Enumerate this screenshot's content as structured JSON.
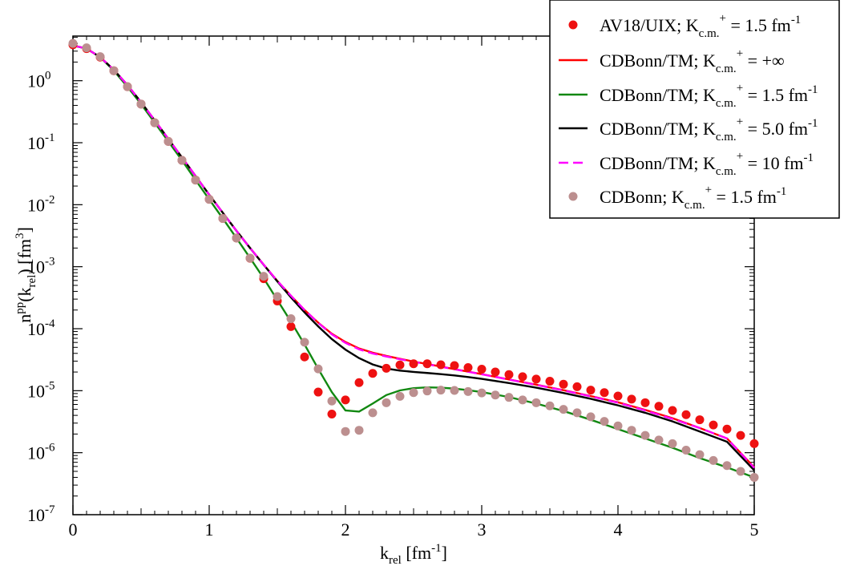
{
  "chart_data": {
    "type": "line",
    "title": "",
    "xlabel": {
      "main": "k",
      "sub": "rel",
      "unit_open": " [fm",
      "unit_sup": "-1",
      "unit_close": "]"
    },
    "ylabel": {
      "p1": "n",
      "sup": "pp",
      "p2": "(k",
      "sub": "rel",
      "p3": ") [fm",
      "sup2": "3",
      "p4": "]"
    },
    "x_range": [
      0,
      5
    ],
    "y_range_log10": [
      -7,
      0.72
    ],
    "x_ticks": [
      {
        "value": 0,
        "label": "0"
      },
      {
        "value": 1,
        "label": "1"
      },
      {
        "value": 2,
        "label": "2"
      },
      {
        "value": 3,
        "label": "3"
      },
      {
        "value": 4,
        "label": "4"
      },
      {
        "value": 5,
        "label": "5"
      }
    ],
    "y_ticks": [
      {
        "exp": 0,
        "base": "10",
        "sup": "0"
      },
      {
        "exp": -1,
        "base": "10",
        "sup": "-1"
      },
      {
        "exp": -2,
        "base": "10",
        "sup": "-2"
      },
      {
        "exp": -3,
        "base": "10",
        "sup": "-3"
      },
      {
        "exp": -4,
        "base": "10",
        "sup": "-4"
      },
      {
        "exp": -5,
        "base": "10",
        "sup": "-5"
      },
      {
        "exp": -6,
        "base": "10",
        "sup": "-6"
      },
      {
        "exp": -7,
        "base": "10",
        "sup": "-7"
      }
    ],
    "legend_position": "top-right",
    "series": [
      {
        "name": "AV18/UIX",
        "legend": {
          "main": "AV18/UIX; K",
          "sub": "c.m.",
          "sup": "+",
          "rest": " = 1.5 fm",
          "unit_sup": "-1"
        },
        "style": "marker",
        "color": "#ee1111",
        "x": [
          0,
          0.1,
          0.2,
          0.3,
          0.4,
          0.5,
          0.6,
          0.7,
          0.8,
          0.9,
          1.0,
          1.1,
          1.2,
          1.3,
          1.4,
          1.5,
          1.6,
          1.7,
          1.8,
          1.9,
          2.0,
          2.1,
          2.2,
          2.3,
          2.4,
          2.5,
          2.6,
          2.7,
          2.8,
          2.9,
          3.0,
          3.1,
          3.2,
          3.3,
          3.4,
          3.5,
          3.6,
          3.7,
          3.8,
          3.9,
          4.0,
          4.1,
          4.2,
          4.3,
          4.4,
          4.5,
          4.6,
          4.7,
          4.8,
          4.9,
          5.0
        ],
        "y": [
          3.8,
          3.3,
          2.4,
          1.45,
          0.8,
          0.42,
          0.21,
          0.105,
          0.052,
          0.025,
          0.0122,
          0.006,
          0.0029,
          0.00137,
          0.00064,
          0.00028,
          0.000108,
          3.5e-05,
          9.5e-06,
          4.2e-06,
          7.1e-06,
          1.35e-05,
          1.9e-05,
          2.3e-05,
          2.6e-05,
          2.72e-05,
          2.72e-05,
          2.62e-05,
          2.54e-05,
          2.36e-05,
          2.22e-05,
          2e-05,
          1.82e-05,
          1.68e-05,
          1.54e-05,
          1.42e-05,
          1.27e-05,
          1.16e-05,
          1.02e-05,
          9.3e-06,
          8.2e-06,
          7.3e-06,
          6.4e-06,
          5.6e-06,
          4.8e-06,
          4.1e-06,
          3.4e-06,
          2.8e-06,
          2.4e-06,
          1.9e-06,
          1.4e-06
        ]
      },
      {
        "name": "CDBonn/TM K=+inf",
        "legend": {
          "main": "CDBonn/TM; K",
          "sub": "c.m.",
          "sup": "+",
          "rest": " = +∞",
          "unit_sup": ""
        },
        "style": "solid",
        "color": "#ff0000",
        "x": [
          0,
          0.1,
          0.2,
          0.3,
          0.4,
          0.5,
          0.6,
          0.7,
          0.8,
          0.9,
          1.0,
          1.1,
          1.2,
          1.3,
          1.4,
          1.5,
          1.6,
          1.7,
          1.8,
          1.9,
          2.0,
          2.1,
          2.2,
          2.3,
          2.4,
          2.5,
          2.6,
          2.7,
          2.8,
          2.9,
          3.0,
          3.2,
          3.4,
          3.6,
          3.8,
          4.0,
          4.2,
          4.4,
          4.6,
          4.8,
          5.0
        ],
        "y": [
          3.7,
          3.3,
          2.4,
          1.5,
          0.85,
          0.45,
          0.23,
          0.115,
          0.058,
          0.029,
          0.0145,
          0.0074,
          0.0038,
          0.002,
          0.00108,
          0.00059,
          0.00034,
          0.0002,
          0.000125,
          8.3e-05,
          6.1e-05,
          4.8e-05,
          4.1e-05,
          3.64e-05,
          3.27e-05,
          2.95e-05,
          2.69e-05,
          2.45e-05,
          2.23e-05,
          2.03e-05,
          1.85e-05,
          1.52e-05,
          1.25e-05,
          1.02e-05,
          8.2e-06,
          6.5e-06,
          4.9e-06,
          3.6e-06,
          2.5e-06,
          1.7e-06,
          5.8e-07
        ]
      },
      {
        "name": "CDBonn/TM K=1.5",
        "legend": {
          "main": "CDBonn/TM; K",
          "sub": "c.m.",
          "sup": "+",
          "rest": " = 1.5 fm",
          "unit_sup": "-1"
        },
        "style": "solid",
        "color": "#118811",
        "x": [
          0,
          0.1,
          0.2,
          0.3,
          0.4,
          0.5,
          0.6,
          0.7,
          0.8,
          0.9,
          1.0,
          1.1,
          1.2,
          1.3,
          1.4,
          1.5,
          1.6,
          1.7,
          1.8,
          1.9,
          2.0,
          2.1,
          2.2,
          2.3,
          2.4,
          2.5,
          2.6,
          2.7,
          2.8,
          2.9,
          3.0,
          3.2,
          3.4,
          3.6,
          3.8,
          4.0,
          4.2,
          4.4,
          4.6,
          4.8,
          5.0
        ],
        "y": [
          3.7,
          3.3,
          2.4,
          1.45,
          0.8,
          0.42,
          0.21,
          0.105,
          0.052,
          0.025,
          0.0122,
          0.006,
          0.0029,
          0.00138,
          0.00065,
          0.00029,
          0.00013,
          5.55e-05,
          2.25e-05,
          9.5e-06,
          4.8e-06,
          4.6e-06,
          6.2e-06,
          8.5e-06,
          1.01e-05,
          1.1e-05,
          1.13e-05,
          1.12e-05,
          1.08e-05,
          1.02e-05,
          9.5e-06,
          7.9e-06,
          6.2e-06,
          4.7e-06,
          3.4e-06,
          2.4e-06,
          1.7e-06,
          1.2e-06,
          8.2e-07,
          5.8e-07,
          4e-07
        ]
      },
      {
        "name": "CDBonn/TM K=5.0",
        "legend": {
          "main": "CDBonn/TM; K",
          "sub": "c.m.",
          "sup": "+",
          "rest": " = 5.0 fm",
          "unit_sup": "-1"
        },
        "style": "solid",
        "color": "#000000",
        "x": [
          0,
          0.1,
          0.2,
          0.3,
          0.4,
          0.5,
          0.6,
          0.7,
          0.8,
          0.9,
          1.0,
          1.1,
          1.2,
          1.3,
          1.4,
          1.5,
          1.6,
          1.7,
          1.8,
          1.9,
          2.0,
          2.1,
          2.2,
          2.3,
          2.4,
          2.5,
          2.6,
          2.7,
          2.8,
          2.9,
          3.0,
          3.2,
          3.4,
          3.6,
          3.8,
          4.0,
          4.2,
          4.4,
          4.6,
          4.8,
          5.0
        ],
        "y": [
          3.7,
          3.3,
          2.4,
          1.5,
          0.85,
          0.45,
          0.23,
          0.115,
          0.058,
          0.029,
          0.0145,
          0.0074,
          0.0038,
          0.002,
          0.00107,
          0.00058,
          0.00032,
          0.000183,
          0.000109,
          6.8e-05,
          4.6e-05,
          3.35e-05,
          2.65e-05,
          2.28e-05,
          2.11e-05,
          2.01e-05,
          1.93e-05,
          1.85e-05,
          1.76e-05,
          1.66e-05,
          1.55e-05,
          1.33e-05,
          1.12e-05,
          9.2e-06,
          7.4e-06,
          5.8e-06,
          4.4e-06,
          3.2e-06,
          2.2e-06,
          1.5e-06,
          5.2e-07
        ]
      },
      {
        "name": "CDBonn/TM K=10",
        "legend": {
          "main": "CDBonn/TM; K",
          "sub": "c.m.",
          "sup": "+",
          "rest": " = 10 fm",
          "unit_sup": "-1"
        },
        "style": "dashed",
        "color": "#ff00ff",
        "x": [
          0,
          0.1,
          0.2,
          0.3,
          0.4,
          0.5,
          0.6,
          0.7,
          0.8,
          0.9,
          1.0,
          1.1,
          1.2,
          1.3,
          1.4,
          1.5,
          1.6,
          1.7,
          1.8,
          1.9,
          2.0,
          2.1,
          2.2,
          2.3,
          2.4,
          2.5,
          2.6,
          2.7,
          2.8,
          2.9,
          3.0,
          3.2,
          3.4,
          3.6,
          3.8,
          4.0,
          4.2,
          4.4,
          4.6,
          4.8,
          5.0
        ],
        "y": [
          3.7,
          3.3,
          2.4,
          1.5,
          0.85,
          0.45,
          0.23,
          0.115,
          0.058,
          0.029,
          0.0145,
          0.0074,
          0.0038,
          0.002,
          0.00108,
          0.00059,
          0.00034,
          0.0002,
          0.000124,
          8.1e-05,
          5.9e-05,
          4.65e-05,
          3.98e-05,
          3.56e-05,
          3.22e-05,
          2.92e-05,
          2.67e-05,
          2.43e-05,
          2.22e-05,
          2.02e-05,
          1.84e-05,
          1.51e-05,
          1.24e-05,
          1.01e-05,
          8.1e-06,
          6.4e-06,
          4.8e-06,
          3.5e-06,
          2.5e-06,
          1.7e-06,
          5.7e-07
        ]
      },
      {
        "name": "CDBonn",
        "legend": {
          "main": "CDBonn; K",
          "sub": "c.m.",
          "sup": "+",
          "rest": " = 1.5 fm",
          "unit_sup": "-1"
        },
        "style": "marker",
        "color": "#bc8f8f",
        "x": [
          0,
          0.1,
          0.2,
          0.3,
          0.4,
          0.5,
          0.6,
          0.7,
          0.8,
          0.9,
          1.0,
          1.1,
          1.2,
          1.3,
          1.4,
          1.5,
          1.6,
          1.7,
          1.8,
          1.9,
          2.0,
          2.1,
          2.2,
          2.3,
          2.4,
          2.5,
          2.6,
          2.7,
          2.8,
          2.9,
          3.0,
          3.1,
          3.2,
          3.3,
          3.4,
          3.5,
          3.6,
          3.7,
          3.8,
          3.9,
          4.0,
          4.1,
          4.2,
          4.3,
          4.4,
          4.5,
          4.6,
          4.7,
          4.8,
          4.9,
          5.0
        ],
        "y": [
          4.0,
          3.4,
          2.45,
          1.45,
          0.8,
          0.42,
          0.21,
          0.105,
          0.052,
          0.025,
          0.0122,
          0.006,
          0.0029,
          0.00138,
          0.0007,
          0.00033,
          0.000145,
          6.05e-05,
          2.25e-05,
          6.8e-06,
          2.2e-06,
          2.3e-06,
          4.4e-06,
          6.4e-06,
          8.1e-06,
          9.3e-06,
          9.9e-06,
          1.02e-05,
          1.01e-05,
          9.7e-06,
          9.2e-06,
          8.5e-06,
          7.8e-06,
          7.1e-06,
          6.4e-06,
          5.7e-06,
          5e-06,
          4.4e-06,
          3.8e-06,
          3.2e-06,
          2.7e-06,
          2.3e-06,
          1.9e-06,
          1.6e-06,
          1.4e-06,
          1.1e-06,
          9.3e-07,
          7.5e-07,
          6.2e-07,
          5e-07,
          4e-07
        ]
      }
    ]
  }
}
